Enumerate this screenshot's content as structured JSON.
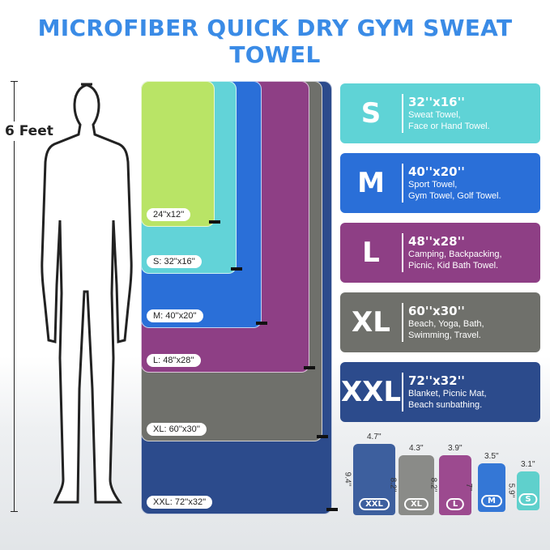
{
  "title": "MICROFIBER QUICK DRY GYM SWEAT TOWEL",
  "height_label": "6 Feet",
  "towels": [
    {
      "label": "XXL: 72''x32''",
      "color": "#2c4b8c"
    },
    {
      "label": "XL: 60''x30''",
      "color": "#6f706b"
    },
    {
      "label": "L: 48''x28''",
      "color": "#8e3f85"
    },
    {
      "label": "M: 40''x20''",
      "color": "#2a6fd8"
    },
    {
      "label": "S: 32''x16''",
      "color": "#62d3d8"
    },
    {
      "label": "24''x12''",
      "color": "#b9e466"
    }
  ],
  "cards": [
    {
      "size": "S",
      "dims": "32''x16''",
      "use1": "Sweat Towel,",
      "use2": "Face or Hand Towel.",
      "color": "#5fd3d6"
    },
    {
      "size": "M",
      "dims": "40''x20''",
      "use1": "Sport Towel,",
      "use2": "Gym Towel, Golf Towel.",
      "color": "#2a6fd8"
    },
    {
      "size": "L",
      "dims": "48''x28''",
      "use1": "Camping, Backpacking,",
      "use2": "Picnic, Kid Bath Towel.",
      "color": "#8e3f85"
    },
    {
      "size": "XL",
      "dims": "60''x30''",
      "use1": "Beach, Yoga, Bath,",
      "use2": "Swimming, Travel.",
      "color": "#6f706b"
    },
    {
      "size": "XXL",
      "dims": "72''x32''",
      "use1": "Blanket, Picnic Mat,",
      "use2": "Beach sunbathing.",
      "color": "#2c4b8c"
    }
  ],
  "rolls": [
    {
      "badge": "XXL",
      "width": "4.7''",
      "height": "9.4''",
      "color": "#3d5f9e"
    },
    {
      "badge": "XL",
      "width": "4.3''",
      "height": "8.2''",
      "color": "#8a8b88"
    },
    {
      "badge": "L",
      "width": "3.9''",
      "height": "8.2''",
      "color": "#9c4a8f"
    },
    {
      "badge": "M",
      "width": "3.5''",
      "height": "7''",
      "color": "#3477d6"
    },
    {
      "badge": "S",
      "width": "3.1''",
      "height": "5.9''",
      "color": "#5fd0cc"
    }
  ]
}
